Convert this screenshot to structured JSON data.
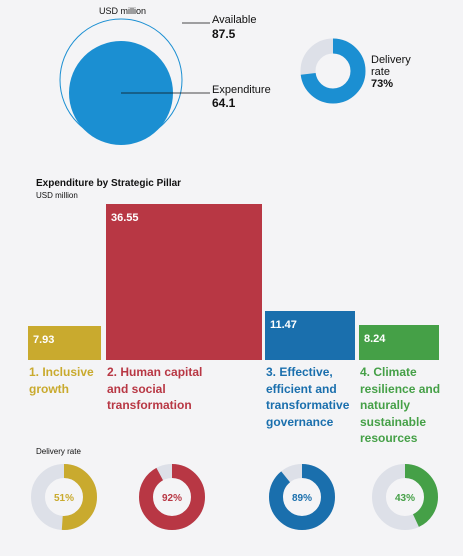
{
  "summary": {
    "unit": "USD million",
    "available": {
      "label": "Available",
      "value": "87.5"
    },
    "expenditure": {
      "label": "Expenditure",
      "value": "64.1"
    },
    "delivery": {
      "label_line1": "Delivery",
      "label_line2": "rate",
      "value": "73%",
      "rate": 0.73
    }
  },
  "chart_data": [
    {
      "type": "bubble",
      "unit": "USD million",
      "categories": [
        "Available",
        "Expenditure"
      ],
      "values": [
        87.5,
        64.1
      ]
    },
    {
      "type": "donut",
      "label": "Delivery rate",
      "value": 73
    },
    {
      "type": "bar",
      "title": "Expenditure by Strategic Pillar",
      "ylabel": "USD million",
      "categories": [
        "1. Inclusive growth",
        "2. Human capital and social transformation",
        "3. Effective, efficient and transformative governance",
        "4. Climate resilience and naturally sustainable resources"
      ],
      "values": [
        7.93,
        36.55,
        11.47,
        8.24
      ],
      "value_labels": [
        "7.93",
        "36.55",
        "11.47",
        "8.24"
      ]
    },
    {
      "type": "donut",
      "title": "Delivery rate",
      "categories": [
        "1. Inclusive growth",
        "2. Human capital and social transformation",
        "3. Effective, efficient and transformative governance",
        "4. Climate resilience and naturally sustainable resources"
      ],
      "values": [
        51,
        92,
        89,
        43
      ],
      "value_labels": [
        "51%",
        "92%",
        "89%",
        "43%"
      ]
    }
  ],
  "pillars": {
    "title": "Expenditure by Strategic Pillar",
    "unit": "USD million",
    "delivery_title": "Delivery rate",
    "items": [
      {
        "name_lines": [
          "1. Inclusive",
          "growth"
        ],
        "value": "7.93",
        "amount": 7.93,
        "rate_label": "51%",
        "rate": 0.51,
        "color": "#c9aa2e"
      },
      {
        "name_lines": [
          "2. Human capital",
          "and social",
          "transformation"
        ],
        "value": "36.55",
        "amount": 36.55,
        "rate_label": "92%",
        "rate": 0.92,
        "color": "#b83744"
      },
      {
        "name_lines": [
          "3. Effective,",
          "efficient and",
          "transformative",
          "governance"
        ],
        "value": "11.47",
        "amount": 11.47,
        "rate_label": "89%",
        "rate": 0.89,
        "color": "#1a6fad"
      },
      {
        "name_lines": [
          "4. Climate",
          "resilience and",
          "naturally",
          "sustainable",
          "resources"
        ],
        "value": "8.24",
        "amount": 8.24,
        "rate_label": "43%",
        "rate": 0.43,
        "color": "#45a047"
      }
    ]
  },
  "colors": {
    "summary_blue": "#1b8fd2",
    "donut_track": "#dde0e8"
  }
}
